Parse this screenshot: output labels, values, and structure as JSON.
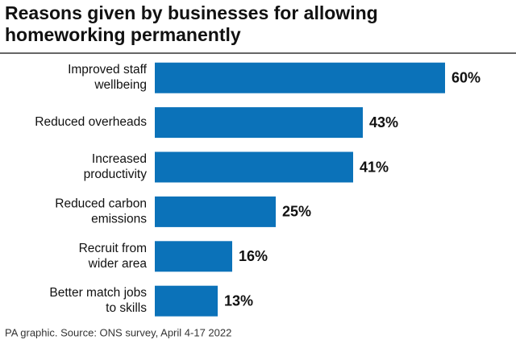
{
  "chart_data": {
    "type": "bar",
    "orientation": "horizontal",
    "title": "Reasons given by businesses for allowing homeworking permanently",
    "categories": [
      "Improved staff wellbeing",
      "Reduced overheads",
      "Increased productivity",
      "Reduced carbon emissions",
      "Recruit from wider area",
      "Better match jobs to skills"
    ],
    "values": [
      60,
      43,
      41,
      25,
      16,
      13
    ],
    "value_labels": [
      "60%",
      "43%",
      "41%",
      "25%",
      "16%",
      "13%"
    ],
    "color": "#0b72b9",
    "xlim": [
      0,
      60
    ],
    "source": "PA graphic. Source: ONS survey, April 4-17 2022"
  }
}
